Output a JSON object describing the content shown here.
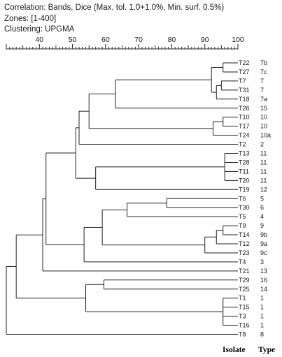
{
  "header": {
    "correlation": "Correlation: Bands, Dice (Max. tol. 1.0+1.0%, Min. surf. 0.5%)",
    "zones": "Zones: [1-400]",
    "clustering": "Clustering: UPGMA"
  },
  "scale": {
    "min": 30,
    "max": 100,
    "labels": [
      "40",
      "50",
      "60",
      "70",
      "80",
      "90",
      "100"
    ],
    "label_values": [
      40,
      50,
      60,
      70,
      80,
      90,
      100
    ]
  },
  "columns": {
    "isolate": "Isolate",
    "type": "Type"
  },
  "leaves": [
    {
      "isolate": "T22",
      "type": "7b"
    },
    {
      "isolate": "T27",
      "type": "7c"
    },
    {
      "isolate": "T7",
      "type": "7"
    },
    {
      "isolate": "T31",
      "type": "7"
    },
    {
      "isolate": "T18",
      "type": "7a"
    },
    {
      "isolate": "T26",
      "type": "15"
    },
    {
      "isolate": "T10",
      "type": "10"
    },
    {
      "isolate": "T17",
      "type": "10"
    },
    {
      "isolate": "T24",
      "type": "10a"
    },
    {
      "isolate": "T2",
      "type": "2"
    },
    {
      "isolate": "T13",
      "type": "11"
    },
    {
      "isolate": "T28",
      "type": "11"
    },
    {
      "isolate": "T11",
      "type": "11"
    },
    {
      "isolate": "T20",
      "type": "11"
    },
    {
      "isolate": "T19",
      "type": "12"
    },
    {
      "isolate": "T6",
      "type": "5"
    },
    {
      "isolate": "T30",
      "type": "6"
    },
    {
      "isolate": "T5",
      "type": "4"
    },
    {
      "isolate": "T9",
      "type": "9"
    },
    {
      "isolate": "T14",
      "type": "9b"
    },
    {
      "isolate": "T12",
      "type": "9a"
    },
    {
      "isolate": "T23",
      "type": "9c"
    },
    {
      "isolate": "T4",
      "type": "3"
    },
    {
      "isolate": "T21",
      "type": "13"
    },
    {
      "isolate": "T29",
      "type": "16"
    },
    {
      "isolate": "T25",
      "type": "14"
    },
    {
      "isolate": "T1",
      "type": "1"
    },
    {
      "isolate": "T15",
      "type": "1"
    },
    {
      "isolate": "T3",
      "type": "1"
    },
    {
      "isolate": "T16",
      "type": "1"
    },
    {
      "isolate": "T8",
      "type": "8"
    }
  ],
  "tree": {
    "s": 30,
    "c": [
      {
        "s": 31.5,
        "c": [
          {
            "s": 33,
            "c": [
              {
                "s": 41,
                "c": [
                  {
                    "s": 42,
                    "c": [
                      {
                        "s": 51,
                        "c": [
                          {
                            "s": 52,
                            "c": [
                              {
                                "s": 55,
                                "c": [
                                  {
                                    "s": 63,
                                    "c": [
                                      {
                                        "s": 92,
                                        "c": [
                                          {
                                            "s": 95.5,
                                            "c": [
                                              {
                                                "leaf": 0
                                              },
                                              {
                                                "leaf": 1
                                              }
                                            ]
                                          },
                                          {
                                            "s": 93.5,
                                            "c": [
                                              {
                                                "s": 95,
                                                "c": [
                                                  {
                                                    "leaf": 2
                                                  },
                                                  {
                                                    "leaf": 3
                                                  }
                                                ]
                                              },
                                              {
                                                "leaf": 4
                                              }
                                            ]
                                          }
                                        ]
                                      },
                                      {
                                        "leaf": 5
                                      }
                                    ]
                                  },
                                  {
                                    "s": 92.5,
                                    "c": [
                                      {
                                        "s": 95.5,
                                        "c": [
                                          {
                                            "leaf": 6
                                          },
                                          {
                                            "leaf": 7
                                          }
                                        ]
                                      },
                                      {
                                        "leaf": 8
                                      }
                                    ]
                                  }
                                ]
                              },
                              {
                                "leaf": 9
                              }
                            ]
                          },
                          {
                            "s": 57,
                            "c": [
                              {
                                "s": 96,
                                "c": [
                                  {
                                    "leaf": 10
                                  },
                                  {
                                    "leaf": 11
                                  },
                                  {
                                    "leaf": 12
                                  },
                                  {
                                    "leaf": 13
                                  }
                                ]
                              },
                              {
                                "leaf": 14
                              }
                            ]
                          }
                        ]
                      },
                      {
                        "s": 53.5,
                        "c": [
                          {
                            "s": 59,
                            "c": [
                              {
                                "s": 66.5,
                                "c": [
                                  {
                                    "s": 78.5,
                                    "c": [
                                      {
                                        "leaf": 15
                                      },
                                      {
                                        "leaf": 16
                                      }
                                    ]
                                  },
                                  {
                                    "leaf": 17
                                  }
                                ]
                              },
                              {
                                "s": 90,
                                "c": [
                                  {
                                    "s": 93.5,
                                    "c": [
                                      {
                                        "s": 95.5,
                                        "c": [
                                          {
                                            "leaf": 18
                                          },
                                          {
                                            "leaf": 19
                                          }
                                        ]
                                      },
                                      {
                                        "leaf": 20
                                      }
                                    ]
                                  },
                                  {
                                    "leaf": 21
                                  }
                                ]
                              }
                            ]
                          },
                          {
                            "leaf": 22
                          }
                        ]
                      }
                    ]
                  },
                  {
                    "leaf": 23
                  }
                ]
              },
              {
                "s": 54,
                "c": [
                  {
                    "s": 59.5,
                    "c": [
                      {
                        "leaf": 24
                      },
                      {
                        "leaf": 25
                      }
                    ]
                  },
                  {
                    "s": 95.5,
                    "c": [
                      {
                        "leaf": 26
                      },
                      {
                        "leaf": 27
                      },
                      {
                        "leaf": 28
                      },
                      {
                        "leaf": 29
                      }
                    ]
                  }
                ]
              }
            ]
          }
        ]
      },
      {
        "leaf": 30
      }
    ]
  }
}
